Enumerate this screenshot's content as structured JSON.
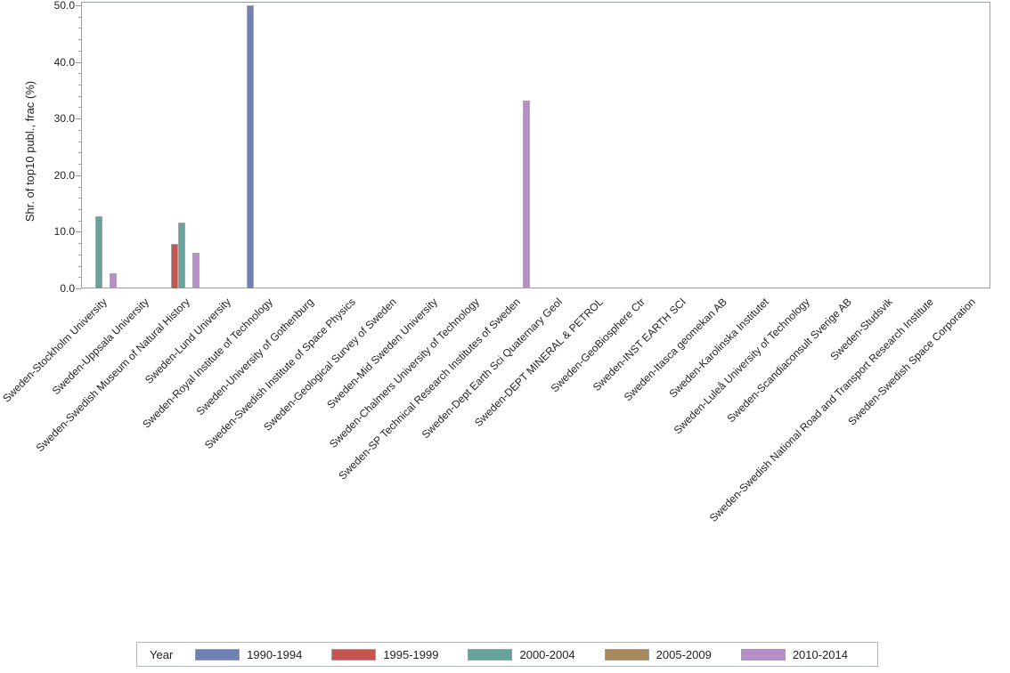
{
  "chart_data": {
    "type": "bar",
    "title": "",
    "xlabel": "",
    "ylabel": "Shr. of top10 publ., frac (%)",
    "ylim": [
      0,
      50
    ],
    "yticks": [
      0,
      10,
      20,
      30,
      40,
      50
    ],
    "ytick_labels": [
      "0.0",
      "10.0",
      "20.0",
      "30.0",
      "40.0",
      "50.0"
    ],
    "minor_tick_step": 2,
    "grid": "off",
    "legend_title": "Year",
    "legend_position": "bottom",
    "categories": [
      "Sweden-Stockholm University",
      "Sweden-Uppsala University",
      "Sweden-Swedish Museum of Natural History",
      "Sweden-Lund University",
      "Sweden-Royal Institute of Technology",
      "Sweden-University of Gothenburg",
      "Sweden-Swedish Institute of Space Physics",
      "Sweden-Geological Survey of Sweden",
      "Sweden-Mid Sweden University",
      "Sweden-Chalmers University of Technology",
      "Sweden-SP Technical Research Institutes of Sweden",
      "Sweden-Dept Earth Sci Quaternary Geol",
      "Sweden-DEPT MINERAL & PETROL",
      "Sweden-GeoBiosphere Ctr",
      "Sweden-INST EARTH SCI",
      "Sweden-Itasca geomekan AB",
      "Sweden-Karolinska Institutet",
      "Sweden-Luleå University of Technology",
      "Sweden-Scandiaconsult Sverige AB",
      "Sweden-Studsvik",
      "Sweden-Swedish National Road and Transport Research Institute",
      "Sweden-Swedish Space Corporation"
    ],
    "series": [
      {
        "name": "1990-1994",
        "color": "#6F80B5",
        "values": [
          null,
          null,
          null,
          null,
          50.0,
          null,
          null,
          null,
          null,
          null,
          null,
          null,
          null,
          null,
          null,
          null,
          null,
          null,
          null,
          null,
          null,
          null
        ]
      },
      {
        "name": "1995-1999",
        "color": "#C5564F",
        "values": [
          null,
          null,
          7.9,
          null,
          null,
          null,
          null,
          null,
          null,
          null,
          null,
          null,
          null,
          null,
          null,
          null,
          null,
          null,
          null,
          null,
          null,
          null
        ]
      },
      {
        "name": "2000-2004",
        "color": "#66A39D",
        "values": [
          12.7,
          null,
          11.6,
          null,
          null,
          null,
          null,
          null,
          null,
          null,
          null,
          null,
          null,
          null,
          null,
          null,
          null,
          null,
          null,
          null,
          null,
          null
        ]
      },
      {
        "name": "2005-2009",
        "color": "#A8895B",
        "values": [
          null,
          null,
          null,
          null,
          null,
          null,
          null,
          null,
          null,
          null,
          null,
          null,
          null,
          null,
          null,
          null,
          null,
          null,
          null,
          null,
          null,
          null
        ]
      },
      {
        "name": "2010-2014",
        "color": "#B78EC8",
        "values": [
          2.7,
          null,
          6.3,
          null,
          null,
          null,
          null,
          null,
          null,
          null,
          33.2,
          null,
          null,
          null,
          null,
          null,
          null,
          null,
          null,
          null,
          null,
          null
        ]
      }
    ]
  },
  "colors": {
    "plot_border": "#999FA6",
    "bar_outline": "#A6A6A6",
    "text": "#1F1F1F",
    "background": "#FFFFFF"
  }
}
